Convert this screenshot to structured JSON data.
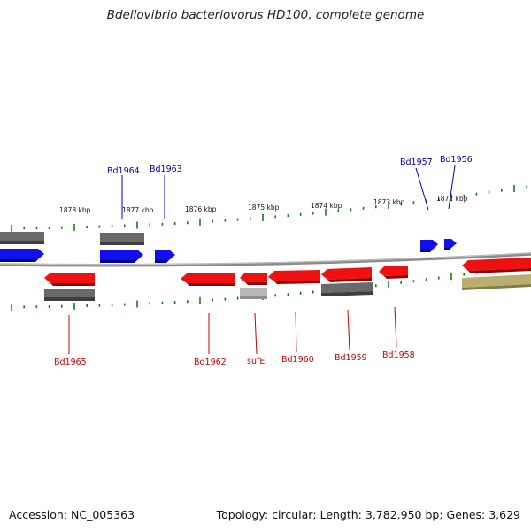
{
  "title": "Bdellovibrio bacteriovorus HD100, complete genome",
  "footer": {
    "accession": "Accession: NC_005363",
    "summary": "Topology: circular; Length: 3,782,950 bp; Genes: 3,629"
  },
  "scale": {
    "unit": "kbp",
    "tick_labels": [
      "1878 kbp",
      "1877 kbp",
      "1876 kbp",
      "1875 kbp",
      "1874 kbp",
      "1873 kbp",
      "1872 kbp"
    ]
  },
  "colors": {
    "backbone": "#8a8a8a",
    "forward_gene": "#1010ee",
    "forward_label": "#0000aa",
    "reverse_gene": "#ee1111",
    "reverse_label": "#cc0000",
    "gray_feature": "#6a6a6a",
    "light_gray_feature": "#b8b8b8",
    "tan_feature": "#b8ae70",
    "tick": "#1a7a1a"
  },
  "labels_forward": [
    "Bd1964",
    "Bd1963",
    "Bd1957",
    "Bd1956"
  ],
  "labels_reverse": [
    "Bd1965",
    "Bd1962",
    "sufE",
    "Bd1960",
    "Bd1959",
    "Bd1958"
  ]
}
